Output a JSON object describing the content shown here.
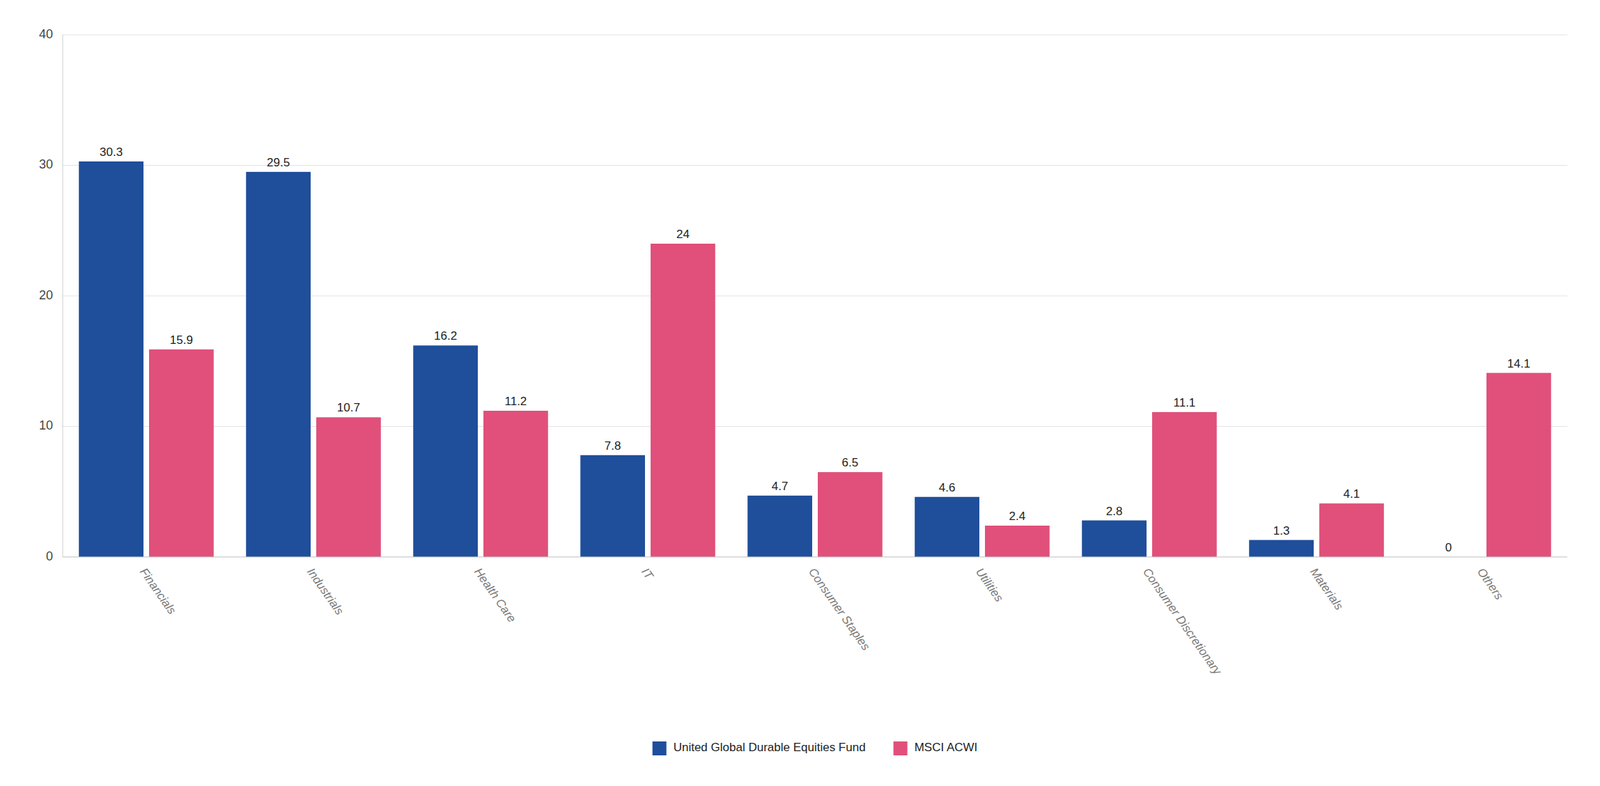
{
  "chart_data": {
    "type": "bar",
    "categories": [
      "Financials",
      "Industrials",
      "Health Care",
      "IT",
      "Consumer Staples",
      "Utilities",
      "Consumer Discretionary",
      "Materials",
      "Others"
    ],
    "series": [
      {
        "name": "United Global Durable Equities Fund",
        "color": "#1f4e9b",
        "values": [
          30.3,
          29.5,
          16.2,
          7.8,
          4.7,
          4.6,
          2.8,
          1.3,
          0
        ]
      },
      {
        "name": "MSCI ACWI",
        "color": "#e0507a",
        "values": [
          15.9,
          10.7,
          11.2,
          24,
          6.5,
          2.4,
          11.1,
          4.1,
          14.1
        ]
      }
    ],
    "ylim": [
      0,
      40
    ],
    "yticks": [
      0,
      10,
      20,
      30,
      40
    ],
    "grid": true,
    "legend": "bottom",
    "data_labels": true
  }
}
